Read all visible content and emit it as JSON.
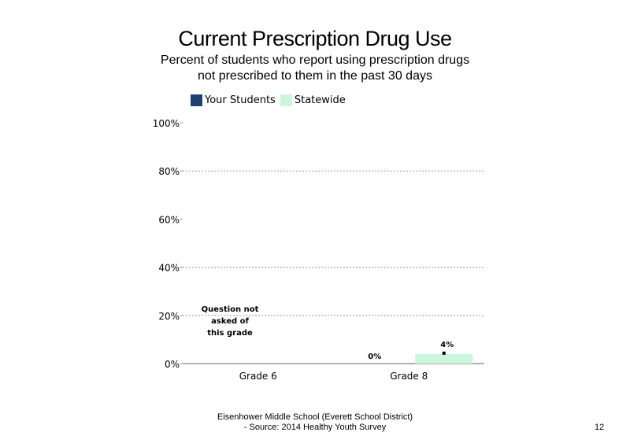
{
  "chart_data": {
    "type": "bar",
    "title": "Current Prescription Drug Use",
    "subtitle": "Percent of students  who report using prescription drugs not prescribed to them in the past 30 days",
    "categories": [
      "Grade 6",
      "Grade 8"
    ],
    "series": [
      {
        "name": "Your Students",
        "color": "#1f3f73",
        "values": [
          null,
          0
        ],
        "labels": [
          "",
          "0%"
        ]
      },
      {
        "name": "Statewide",
        "color": "#ccf5dc",
        "values": [
          null,
          4
        ],
        "labels": [
          "",
          "4%"
        ]
      }
    ],
    "yticks": [
      "0%",
      "20%",
      "40%",
      "60%",
      "80%",
      "100%"
    ],
    "ylim": [
      0,
      100
    ],
    "grid": true,
    "annotation": {
      "category": "Grade 6",
      "lines": [
        "Question not",
        "asked of",
        "this grade"
      ]
    },
    "legend_position": "top"
  },
  "footer": {
    "line1": "Eisenhower Middle School (Everett School District)",
    "line2": "- Source: 2014 Healthy  Youth Survey"
  },
  "page_number": "12"
}
